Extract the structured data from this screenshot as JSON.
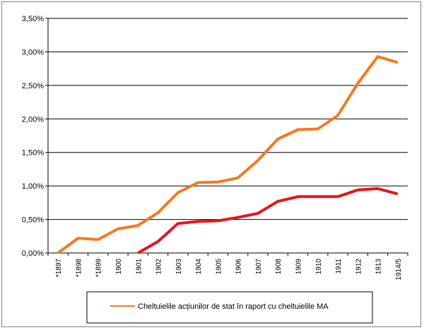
{
  "chart_data": {
    "type": "line",
    "categories": [
      "*1897",
      "*1898",
      "*1899",
      "1900",
      "1901",
      "1902",
      "1903",
      "1904",
      "1905",
      "1906",
      "1907",
      "1908",
      "1909",
      "1910",
      "1911",
      "1912",
      "1913",
      "1914/5"
    ],
    "series": [
      {
        "name": "Cheltuielile acțiunilor de stat în raport cu cheltuielile MA",
        "color": "#f57920",
        "values": [
          0.0,
          0.22,
          0.2,
          0.36,
          0.41,
          0.6,
          0.9,
          1.05,
          1.06,
          1.12,
          1.38,
          1.7,
          1.84,
          1.85,
          2.05,
          2.53,
          2.93,
          2.84
        ]
      },
      {
        "color": "#e8141c",
        "values": [
          null,
          null,
          null,
          null,
          0.0,
          0.17,
          0.44,
          0.47,
          0.48,
          0.53,
          0.59,
          0.77,
          0.84,
          0.84,
          0.84,
          0.94,
          0.96,
          0.88
        ]
      }
    ],
    "y_ticks": [
      "0,00%",
      "0,50%",
      "1,00%",
      "1,50%",
      "2,00%",
      "2,50%",
      "3,00%",
      "3,50%"
    ],
    "ylim": [
      0,
      3.5
    ],
    "grid": "horizontal",
    "legend_position": "bottom"
  }
}
